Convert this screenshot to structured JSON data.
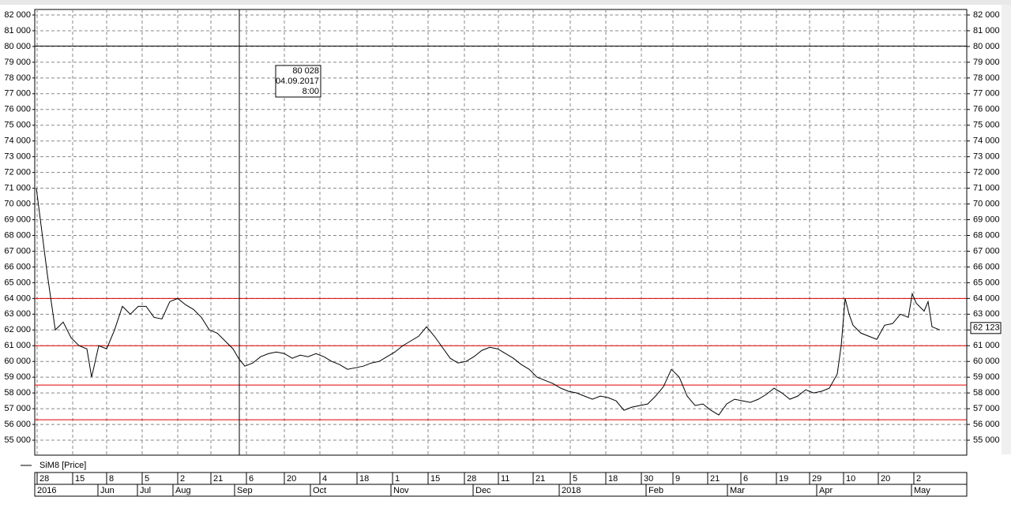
{
  "chart_data": {
    "type": "line",
    "series": [
      {
        "name": "SiM8 [Price]",
        "color": "#000000",
        "x": [
          2,
          16,
          26,
          36,
          46,
          56,
          66,
          72,
          81,
          91,
          101,
          111,
          121,
          131,
          141,
          151,
          161,
          171,
          181,
          191,
          201,
          211,
          221,
          231,
          241,
          251,
          258,
          266,
          276,
          286,
          296,
          306,
          316,
          326,
          336,
          346,
          356,
          366,
          376,
          386,
          396,
          406,
          416,
          426,
          436,
          446,
          456,
          466,
          476,
          486,
          496,
          506,
          516,
          526,
          536,
          546,
          556,
          566,
          576,
          586,
          596,
          606,
          616,
          626,
          636,
          646,
          656,
          666,
          676,
          686,
          696,
          706,
          716,
          726,
          736,
          746,
          756,
          766,
          776,
          786,
          796,
          806,
          816,
          826,
          836,
          846,
          856,
          866,
          876,
          886,
          896,
          906,
          916,
          926,
          936,
          946,
          956,
          966,
          976,
          986,
          996,
          1006,
          1016,
          1021,
          1026,
          1031,
          1036,
          1046,
          1056,
          1066,
          1076,
          1086,
          1096,
          1106,
          1111,
          1116,
          1126,
          1131,
          1136,
          1146
        ],
        "values": [
          71000,
          65500,
          62000,
          62500,
          61500,
          61000,
          60800,
          59000,
          61000,
          60800,
          62000,
          63500,
          63000,
          63500,
          63500,
          62800,
          62700,
          63800,
          64000,
          63600,
          63300,
          62800,
          62000,
          61800,
          61300,
          60800,
          60200,
          59700,
          59900,
          60300,
          60500,
          60600,
          60500,
          60200,
          60400,
          60300,
          60500,
          60300,
          60000,
          59800,
          59500,
          59600,
          59700,
          59900,
          60000,
          60300,
          60600,
          61000,
          61300,
          61600,
          62200,
          61600,
          60900,
          60200,
          59900,
          60000,
          60300,
          60700,
          60900,
          60800,
          60500,
          60200,
          59800,
          59500,
          59000,
          58800,
          58600,
          58300,
          58100,
          58000,
          57800,
          57600,
          57800,
          57700,
          57500,
          56900,
          57100,
          57200,
          57300,
          57800,
          58400,
          59500,
          59000,
          57800,
          57200,
          57300,
          56900,
          56600,
          57300,
          57600,
          57500,
          57400,
          57600,
          57900,
          58300,
          58000,
          57600,
          57800,
          58200,
          58000,
          58100,
          58300,
          59200,
          61000,
          64000,
          63000,
          62300,
          61800,
          61600,
          61400,
          62300,
          62400,
          63000,
          62800,
          64300,
          63700,
          63200,
          63800,
          62200,
          62000
        ]
      }
    ],
    "xlim": [
      0,
      1180
    ],
    "ylim": [
      54050,
      82350
    ],
    "yticks": [
      {
        "value": 55000,
        "label": "55 000"
      },
      {
        "value": 56000,
        "label": "56 000"
      },
      {
        "value": 57000,
        "label": "57 000"
      },
      {
        "value": 58000,
        "label": "58 000"
      },
      {
        "value": 59000,
        "label": "59 000"
      },
      {
        "value": 60000,
        "label": "60 000"
      },
      {
        "value": 61000,
        "label": "61 000"
      },
      {
        "value": 62000,
        "label": "62 000"
      },
      {
        "value": 63000,
        "label": "63 000"
      },
      {
        "value": 64000,
        "label": "64 000"
      },
      {
        "value": 65000,
        "label": "65 000"
      },
      {
        "value": 66000,
        "label": "66 000"
      },
      {
        "value": 67000,
        "label": "67 000"
      },
      {
        "value": 68000,
        "label": "68 000"
      },
      {
        "value": 69000,
        "label": "69 000"
      },
      {
        "value": 70000,
        "label": "70 000"
      },
      {
        "value": 71000,
        "label": "71 000"
      },
      {
        "value": 72000,
        "label": "72 000"
      },
      {
        "value": 73000,
        "label": "73 000"
      },
      {
        "value": 74000,
        "label": "74 000"
      },
      {
        "value": 75000,
        "label": "75 000"
      },
      {
        "value": 76000,
        "label": "76 000"
      },
      {
        "value": 77000,
        "label": "77 000"
      },
      {
        "value": 78000,
        "label": "78 000"
      },
      {
        "value": 79000,
        "label": "79 000"
      },
      {
        "value": 80000,
        "label": "80 000"
      },
      {
        "value": 81000,
        "label": "81 000"
      },
      {
        "value": 82000,
        "label": "82 000"
      }
    ],
    "xticks": [
      {
        "value": 3,
        "label": "28"
      },
      {
        "value": 48,
        "label": "15"
      },
      {
        "value": 91,
        "label": "8"
      },
      {
        "value": 136,
        "label": "5"
      },
      {
        "value": 181,
        "label": "2"
      },
      {
        "value": 223,
        "label": "21"
      },
      {
        "value": 268,
        "label": "6"
      },
      {
        "value": 316,
        "label": "20"
      },
      {
        "value": 361,
        "label": "4"
      },
      {
        "value": 408,
        "label": "18"
      },
      {
        "value": 453,
        "label": "1"
      },
      {
        "value": 498,
        "label": "15"
      },
      {
        "value": 544,
        "label": "28"
      },
      {
        "value": 587,
        "label": "11"
      },
      {
        "value": 631,
        "label": "21"
      },
      {
        "value": 678,
        "label": "5"
      },
      {
        "value": 723,
        "label": "18"
      },
      {
        "value": 768,
        "label": "30"
      },
      {
        "value": 808,
        "label": "9"
      },
      {
        "value": 852,
        "label": "21"
      },
      {
        "value": 894,
        "label": "6"
      },
      {
        "value": 939,
        "label": "19"
      },
      {
        "value": 981,
        "label": "29"
      },
      {
        "value": 1024,
        "label": "10"
      },
      {
        "value": 1068,
        "label": "20"
      },
      {
        "value": 1113,
        "label": "2"
      }
    ],
    "period_ticks": [
      {
        "value": 0,
        "label": "2016"
      },
      {
        "value": 80,
        "label": "Jun"
      },
      {
        "value": 130,
        "label": "Jul"
      },
      {
        "value": 175,
        "label": "Aug"
      },
      {
        "value": 253,
        "label": "Sep"
      },
      {
        "value": 349,
        "label": "Oct"
      },
      {
        "value": 451,
        "label": "Nov"
      },
      {
        "value": 555,
        "label": "Dec"
      },
      {
        "value": 664,
        "label": "2018"
      },
      {
        "value": 774,
        "label": "Feb"
      },
      {
        "value": 877,
        "label": "Mar"
      },
      {
        "value": 990,
        "label": "Apr"
      },
      {
        "value": 1110,
        "label": "May"
      }
    ],
    "grid": true,
    "levels": [
      {
        "value": 64000,
        "color": "#e00000"
      },
      {
        "value": 61000,
        "color": "#e00000"
      },
      {
        "value": 58500,
        "color": "#e00000"
      },
      {
        "value": 56300,
        "color": "#e00000"
      }
    ],
    "cursor": {
      "x": 259,
      "value": 80028,
      "label": "80 028",
      "date": "04.09.2017",
      "time": "8:00"
    },
    "last_value": {
      "value": 62123,
      "label": "62 123"
    }
  }
}
